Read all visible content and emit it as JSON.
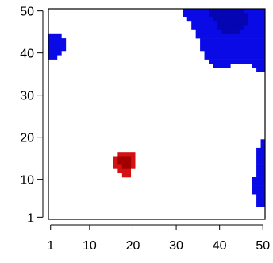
{
  "chart_data": {
    "type": "heatmap",
    "title": "",
    "xlabel": "",
    "ylabel": "",
    "xlim": [
      1,
      50
    ],
    "ylim": [
      1,
      50
    ],
    "x_ticks": [
      1,
      10,
      20,
      30,
      40,
      50
    ],
    "y_ticks": [
      1,
      10,
      20,
      30,
      40,
      50
    ],
    "x_tick_labels": [
      "1",
      "10",
      "20",
      "30",
      "40",
      "50"
    ],
    "y_tick_labels": [
      "1",
      "10",
      "20",
      "30",
      "40",
      "50"
    ],
    "grid": false,
    "colors": {
      "background": "#ffffff",
      "low_region": "#0a0ae6",
      "low_core": "#0505b4",
      "high_region": "#d41010",
      "high_core": "#a00000"
    },
    "regions": [
      {
        "level": "low",
        "rows": [
          {
            "y": 44,
            "x0": 1,
            "x1": 3
          },
          {
            "y": 43,
            "x0": 1,
            "x1": 4
          },
          {
            "y": 42,
            "x0": 1,
            "x1": 4
          },
          {
            "y": 41,
            "x0": 1,
            "x1": 4
          },
          {
            "y": 40,
            "x0": 1,
            "x1": 3
          },
          {
            "y": 39,
            "x0": 1,
            "x1": 2
          }
        ]
      },
      {
        "level": "low",
        "rows": [
          {
            "y": 50,
            "x0": 32,
            "x1": 50
          },
          {
            "y": 49,
            "x0": 32,
            "x1": 50
          },
          {
            "y": 48,
            "x0": 33,
            "x1": 50
          },
          {
            "y": 47,
            "x0": 34,
            "x1": 50
          },
          {
            "y": 46,
            "x0": 34,
            "x1": 50
          },
          {
            "y": 45,
            "x0": 35,
            "x1": 50
          },
          {
            "y": 44,
            "x0": 35,
            "x1": 50
          },
          {
            "y": 43,
            "x0": 36,
            "x1": 50
          },
          {
            "y": 42,
            "x0": 36,
            "x1": 50
          },
          {
            "y": 41,
            "x0": 36,
            "x1": 50
          },
          {
            "y": 40,
            "x0": 37,
            "x1": 50
          },
          {
            "y": 39,
            "x0": 37,
            "x1": 50
          },
          {
            "y": 38,
            "x0": 38,
            "x1": 50
          },
          {
            "y": 37,
            "x0": 39,
            "x1": 42
          },
          {
            "y": 37,
            "x0": 48,
            "x1": 50
          },
          {
            "y": 36,
            "x0": 49,
            "x1": 50
          }
        ]
      },
      {
        "level": "low_core",
        "rows": [
          {
            "y": 50,
            "x0": 38,
            "x1": 45
          },
          {
            "y": 49,
            "x0": 38,
            "x1": 46
          },
          {
            "y": 48,
            "x0": 39,
            "x1": 46
          },
          {
            "y": 47,
            "x0": 40,
            "x1": 46
          },
          {
            "y": 46,
            "x0": 40,
            "x1": 45
          },
          {
            "y": 45,
            "x0": 41,
            "x1": 44
          }
        ]
      },
      {
        "level": "low",
        "rows": [
          {
            "y": 19,
            "x0": 50,
            "x1": 50
          },
          {
            "y": 18,
            "x0": 50,
            "x1": 50
          },
          {
            "y": 17,
            "x0": 49,
            "x1": 50
          },
          {
            "y": 16,
            "x0": 49,
            "x1": 50
          },
          {
            "y": 15,
            "x0": 49,
            "x1": 50
          },
          {
            "y": 14,
            "x0": 49,
            "x1": 50
          },
          {
            "y": 13,
            "x0": 49,
            "x1": 50
          },
          {
            "y": 12,
            "x0": 49,
            "x1": 50
          },
          {
            "y": 11,
            "x0": 49,
            "x1": 50
          },
          {
            "y": 10,
            "x0": 48,
            "x1": 50
          },
          {
            "y": 9,
            "x0": 48,
            "x1": 50
          },
          {
            "y": 8,
            "x0": 48,
            "x1": 50
          },
          {
            "y": 7,
            "x0": 48,
            "x1": 50
          },
          {
            "y": 6,
            "x0": 49,
            "x1": 50
          },
          {
            "y": 5,
            "x0": 49,
            "x1": 50
          },
          {
            "y": 4,
            "x0": 49,
            "x1": 50
          }
        ]
      },
      {
        "level": "high",
        "rows": [
          {
            "y": 16,
            "x0": 17,
            "x1": 20
          },
          {
            "y": 15,
            "x0": 16,
            "x1": 20
          },
          {
            "y": 14,
            "x0": 16,
            "x1": 20
          },
          {
            "y": 13,
            "x0": 16,
            "x1": 20
          },
          {
            "y": 12,
            "x0": 17,
            "x1": 19
          },
          {
            "y": 11,
            "x0": 18,
            "x1": 19
          }
        ]
      },
      {
        "level": "high_core",
        "rows": [
          {
            "y": 15,
            "x0": 17,
            "x1": 19
          },
          {
            "y": 14,
            "x0": 17,
            "x1": 19
          },
          {
            "y": 13,
            "x0": 18,
            "x1": 19
          }
        ]
      }
    ]
  }
}
